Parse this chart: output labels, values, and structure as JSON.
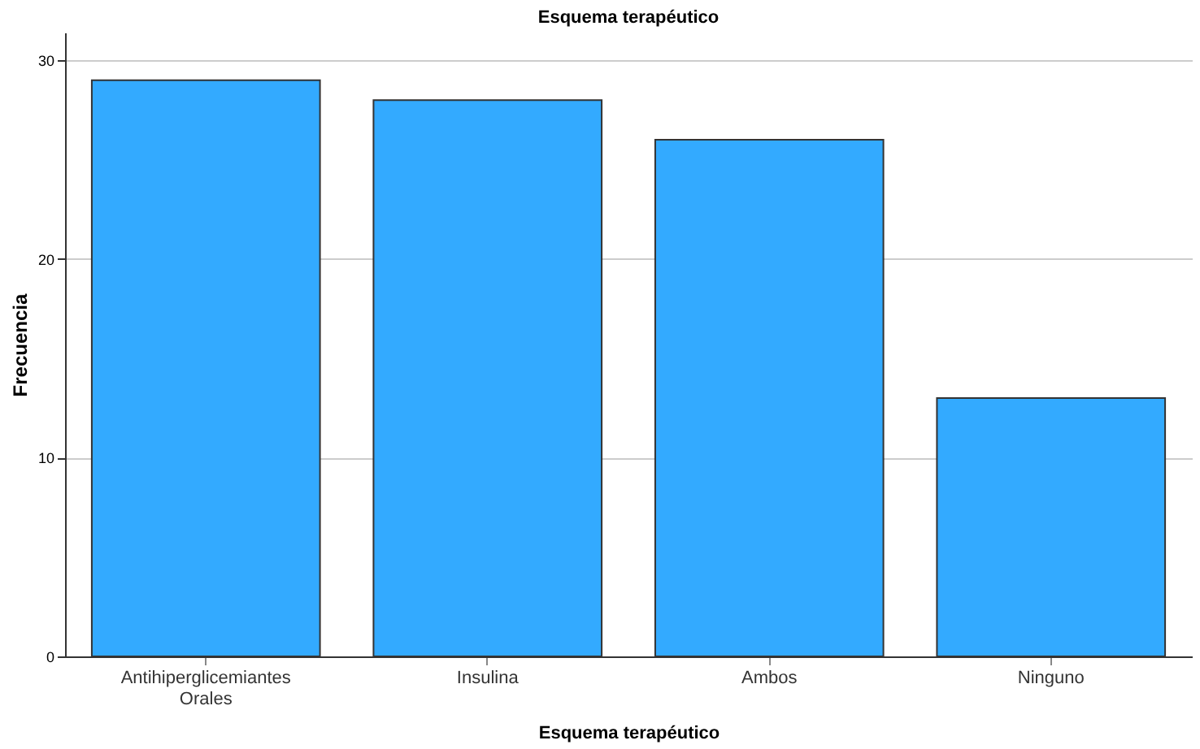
{
  "chart_data": {
    "type": "bar",
    "title": "Esquema terapéutico",
    "xlabel": "Esquema terapéutico",
    "ylabel": "Frecuencia",
    "categories": [
      "Antihiperglicemiantes Orales",
      "Insulina",
      "Ambos",
      "Ninguno"
    ],
    "values": [
      29,
      28,
      26,
      13
    ],
    "color": "#33aaff",
    "ylim": [
      0,
      31.4
    ],
    "yticks": [
      0,
      10,
      20,
      30
    ],
    "grid": "y"
  }
}
